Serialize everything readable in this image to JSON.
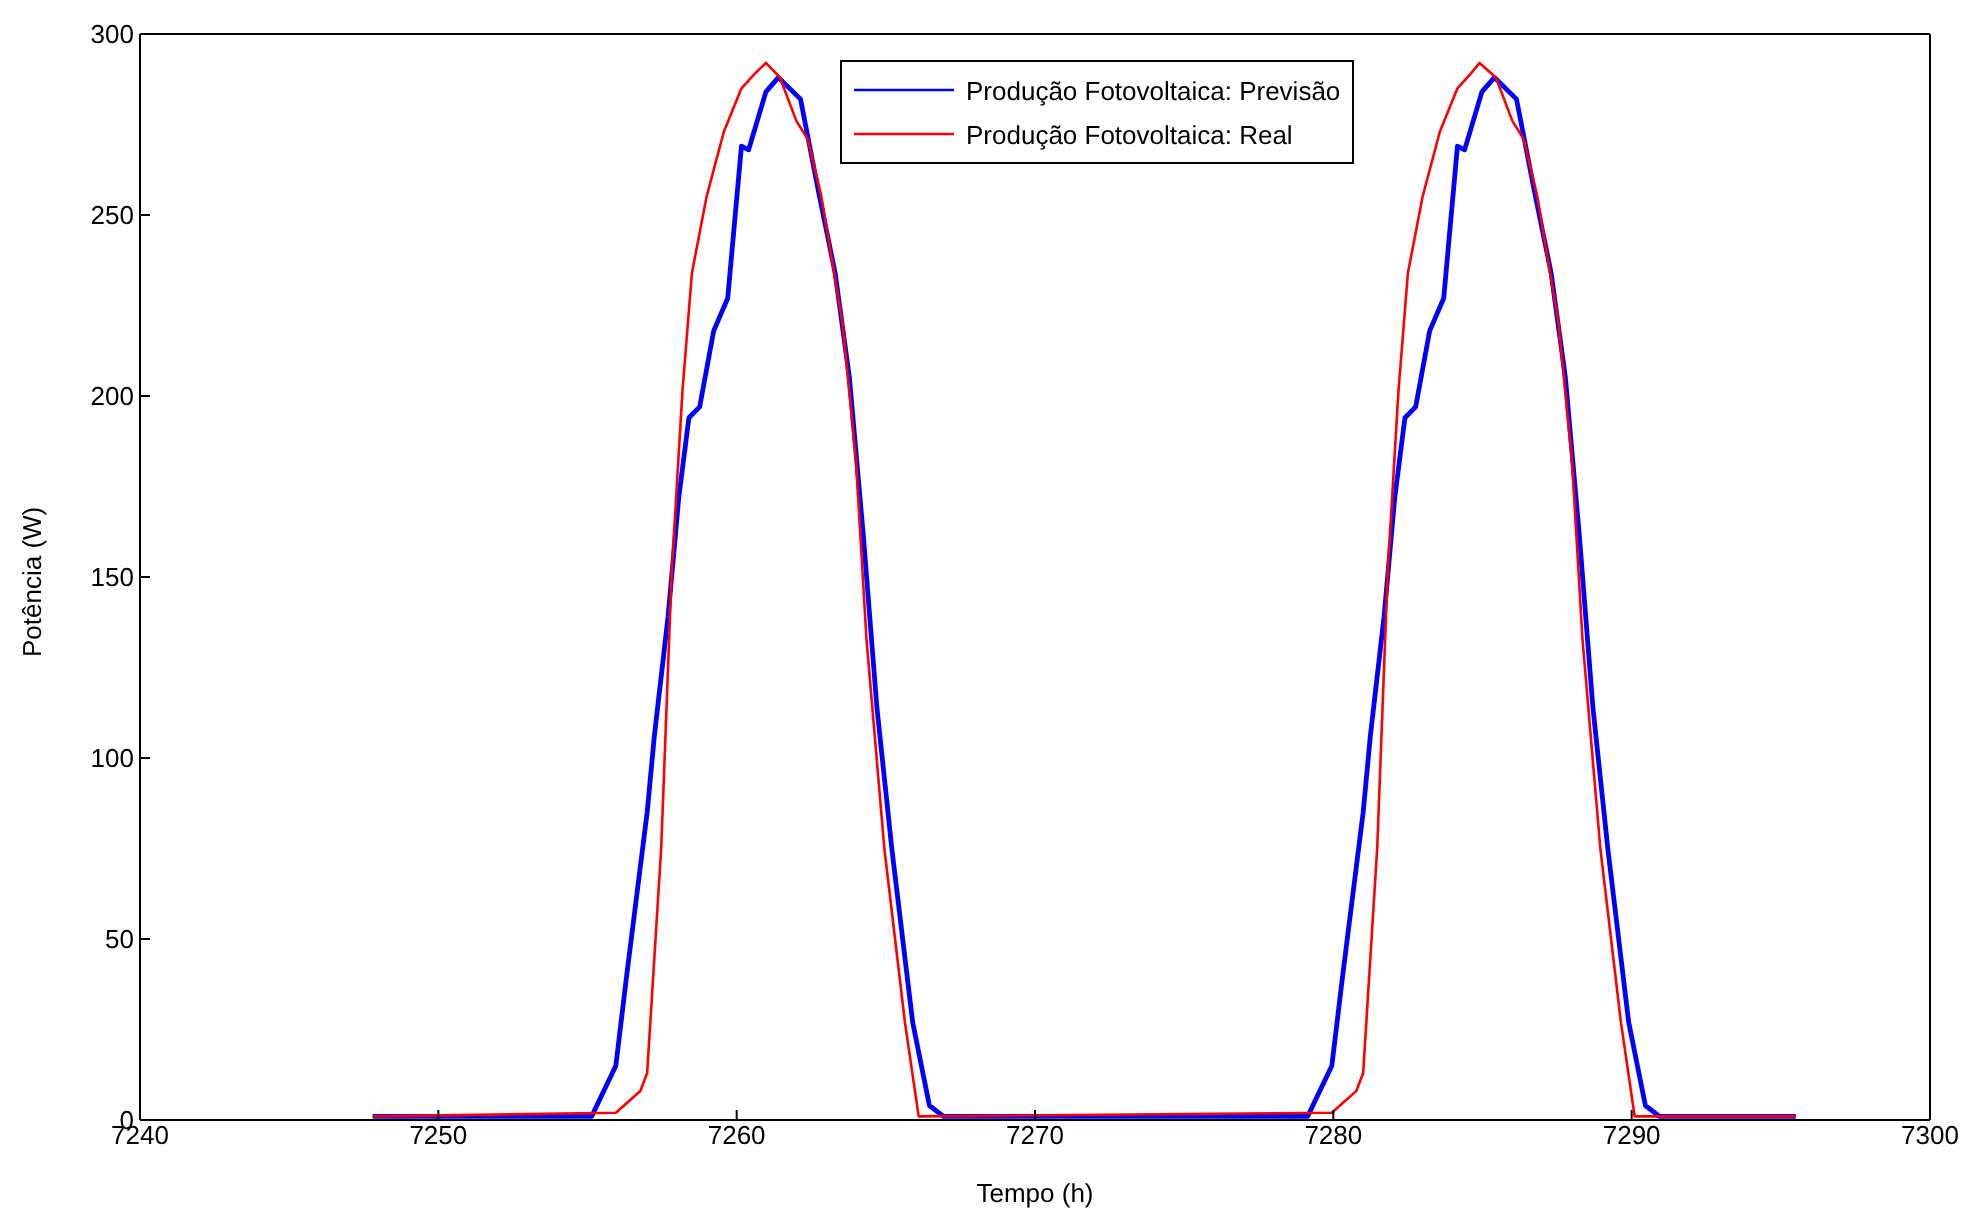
{
  "chart_data": {
    "type": "line",
    "xlabel": "Tempo (h)",
    "ylabel": "Potência (W)",
    "xlim": [
      7240,
      7300
    ],
    "xticks": [
      7240,
      7250,
      7260,
      7270,
      7280,
      7290,
      7300
    ],
    "ylim": [
      0,
      300
    ],
    "yticks": [
      0,
      50,
      100,
      150,
      200,
      250,
      300
    ],
    "grid": false,
    "legend": "top",
    "marker": "none",
    "line_style": "solid",
    "series": [
      {
        "name": "Produção Fotovoltaica: Previsão",
        "color": "#0000ff",
        "x": [
          7247.8,
          7255.14,
          7255.95,
          7256.3,
          7257.0,
          7257.24,
          7257.7,
          7258.06,
          7258.4,
          7258.76,
          7259.23,
          7259.7,
          7260.16,
          7260.4,
          7260.98,
          7261.4,
          7262.14,
          7262.73,
          7263.3,
          7263.78,
          7264.24,
          7264.7,
          7265.2,
          7265.9,
          7266.46,
          7266.93,
          7279.14,
          7279.95,
          7280.3,
          7281.0,
          7281.24,
          7281.7,
          7282.06,
          7282.4,
          7282.76,
          7283.23,
          7283.7,
          7284.16,
          7284.4,
          7284.98,
          7285.4,
          7286.14,
          7286.73,
          7287.3,
          7287.78,
          7288.24,
          7288.7,
          7289.2,
          7289.9,
          7290.46,
          7290.93,
          7295.5
        ],
        "values": [
          1,
          1,
          15,
          39,
          85,
          106,
          139,
          172,
          194,
          197,
          218,
          227,
          269,
          268,
          284,
          288,
          282,
          257,
          234,
          205,
          162,
          114,
          75,
          27,
          4,
          1,
          1,
          15,
          39,
          85,
          106,
          139,
          172,
          194,
          197,
          218,
          227,
          269,
          268,
          284,
          288,
          282,
          257,
          234,
          205,
          162,
          114,
          75,
          27,
          4,
          1,
          1
        ]
      },
      {
        "name": "Produção Fotovoltaica: Real",
        "color": "#ff0000",
        "x": [
          7247.8,
          7255.95,
          7256.77,
          7257.0,
          7257.47,
          7257.82,
          7258.18,
          7258.5,
          7258.99,
          7259.57,
          7260.16,
          7260.6,
          7260.98,
          7261.45,
          7262.0,
          7262.38,
          7262.84,
          7263.55,
          7264.0,
          7264.35,
          7264.95,
          7265.64,
          7266.1,
          7279.95,
          7280.77,
          7281.0,
          7281.47,
          7281.82,
          7282.18,
          7282.5,
          7282.99,
          7283.57,
          7284.16,
          7284.6,
          7284.9,
          7285.45,
          7286.0,
          7286.38,
          7286.84,
          7287.55,
          7288.0,
          7288.35,
          7288.95,
          7289.64,
          7290.1,
          7295.5
        ],
        "values": [
          1,
          2,
          8,
          13,
          75,
          151,
          201,
          234,
          255,
          273,
          285,
          289,
          292,
          288,
          276,
          271,
          255,
          220,
          182,
          133,
          75,
          27,
          1,
          2,
          8,
          13,
          75,
          151,
          201,
          234,
          255,
          273,
          285,
          289,
          292,
          288,
          276,
          271,
          255,
          220,
          182,
          133,
          75,
          27,
          1,
          1
        ]
      }
    ]
  }
}
